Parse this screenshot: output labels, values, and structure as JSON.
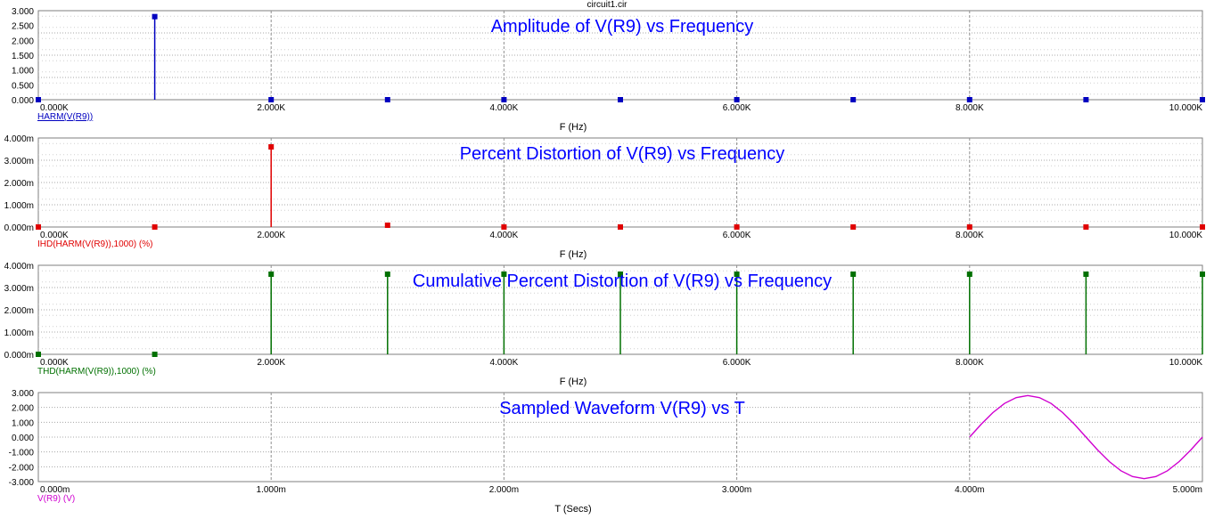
{
  "window_title": "circuit1.cir",
  "chart_data": [
    {
      "type": "stem",
      "title": "Amplitude of V(R9) vs Frequency",
      "xlabel": "F (Hz)",
      "trace_label": "HARM(V(R9))",
      "color": "#0000c0",
      "title_color": "#0000ff",
      "xlim": [
        0,
        10000
      ],
      "ylim": [
        0,
        3
      ],
      "x_ticks": [
        "0.000K",
        "2.000K",
        "4.000K",
        "6.000K",
        "8.000K",
        "10.000K"
      ],
      "y_ticks": [
        "0.000",
        "0.500",
        "1.000",
        "1.500",
        "2.000",
        "2.500",
        "3.000"
      ],
      "x": [
        0,
        1000,
        2000,
        3000,
        4000,
        5000,
        6000,
        7000,
        8000,
        9000,
        10000
      ],
      "y": [
        0,
        2.8,
        0,
        0,
        0,
        0,
        0,
        0,
        0,
        0,
        0
      ]
    },
    {
      "type": "stem",
      "title": "Percent Distortion of V(R9) vs Frequency",
      "xlabel": "F (Hz)",
      "trace_label": "IHD(HARM(V(R9)),1000) (%)",
      "color": "#e00000",
      "title_color": "#0000ff",
      "xlim": [
        0,
        10000
      ],
      "ylim": [
        0,
        0.004
      ],
      "x_ticks": [
        "0.000K",
        "2.000K",
        "4.000K",
        "6.000K",
        "8.000K",
        "10.000K"
      ],
      "y_ticks": [
        "0.000m",
        "1.000m",
        "2.000m",
        "3.000m",
        "4.000m"
      ],
      "x": [
        0,
        1000,
        2000,
        3000,
        4000,
        5000,
        6000,
        7000,
        8000,
        9000,
        10000
      ],
      "y": [
        0,
        0,
        0.0036,
        8e-05,
        0,
        0,
        0,
        0,
        0,
        0,
        0
      ]
    },
    {
      "type": "stem",
      "title": "Cumulative Percent Distortion of V(R9) vs Frequency",
      "xlabel": "F (Hz)",
      "trace_label": "THD(HARM(V(R9)),1000) (%)",
      "color": "#007000",
      "title_color": "#0000ff",
      "xlim": [
        0,
        10000
      ],
      "ylim": [
        0,
        0.004
      ],
      "x_ticks": [
        "0.000K",
        "2.000K",
        "4.000K",
        "6.000K",
        "8.000K",
        "10.000K"
      ],
      "y_ticks": [
        "0.000m",
        "1.000m",
        "2.000m",
        "3.000m",
        "4.000m"
      ],
      "x": [
        0,
        1000,
        2000,
        3000,
        4000,
        5000,
        6000,
        7000,
        8000,
        9000,
        10000
      ],
      "y": [
        0,
        0,
        0.0036,
        0.0036,
        0.0036,
        0.0036,
        0.0036,
        0.0036,
        0.0036,
        0.0036,
        0.0036
      ]
    },
    {
      "type": "line",
      "title": "Sampled Waveform  V(R9) vs T",
      "xlabel": "T (Secs)",
      "trace_label": "V(R9) (V)",
      "color": "#d000d0",
      "title_color": "#0000ff",
      "xlim": [
        0,
        0.005
      ],
      "ylim": [
        -3,
        3
      ],
      "x_ticks": [
        "0.000m",
        "1.000m",
        "2.000m",
        "3.000m",
        "4.000m",
        "5.000m"
      ],
      "y_ticks": [
        "-3.000",
        "-2.000",
        "-1.000",
        "0.000",
        "1.000",
        "2.000",
        "3.000"
      ],
      "x": [
        0.004,
        0.00405,
        0.0041,
        0.00415,
        0.0042,
        0.00425,
        0.0043,
        0.00435,
        0.0044,
        0.00445,
        0.0045,
        0.00455,
        0.0046,
        0.00465,
        0.0047,
        0.00475,
        0.0048,
        0.00485,
        0.0049,
        0.00495,
        0.005
      ],
      "y": [
        0,
        0.87,
        1.65,
        2.27,
        2.66,
        2.8,
        2.66,
        2.27,
        1.65,
        0.87,
        0,
        -0.87,
        -1.65,
        -2.27,
        -2.66,
        -2.8,
        -2.66,
        -2.27,
        -1.65,
        -0.87,
        0
      ]
    }
  ]
}
